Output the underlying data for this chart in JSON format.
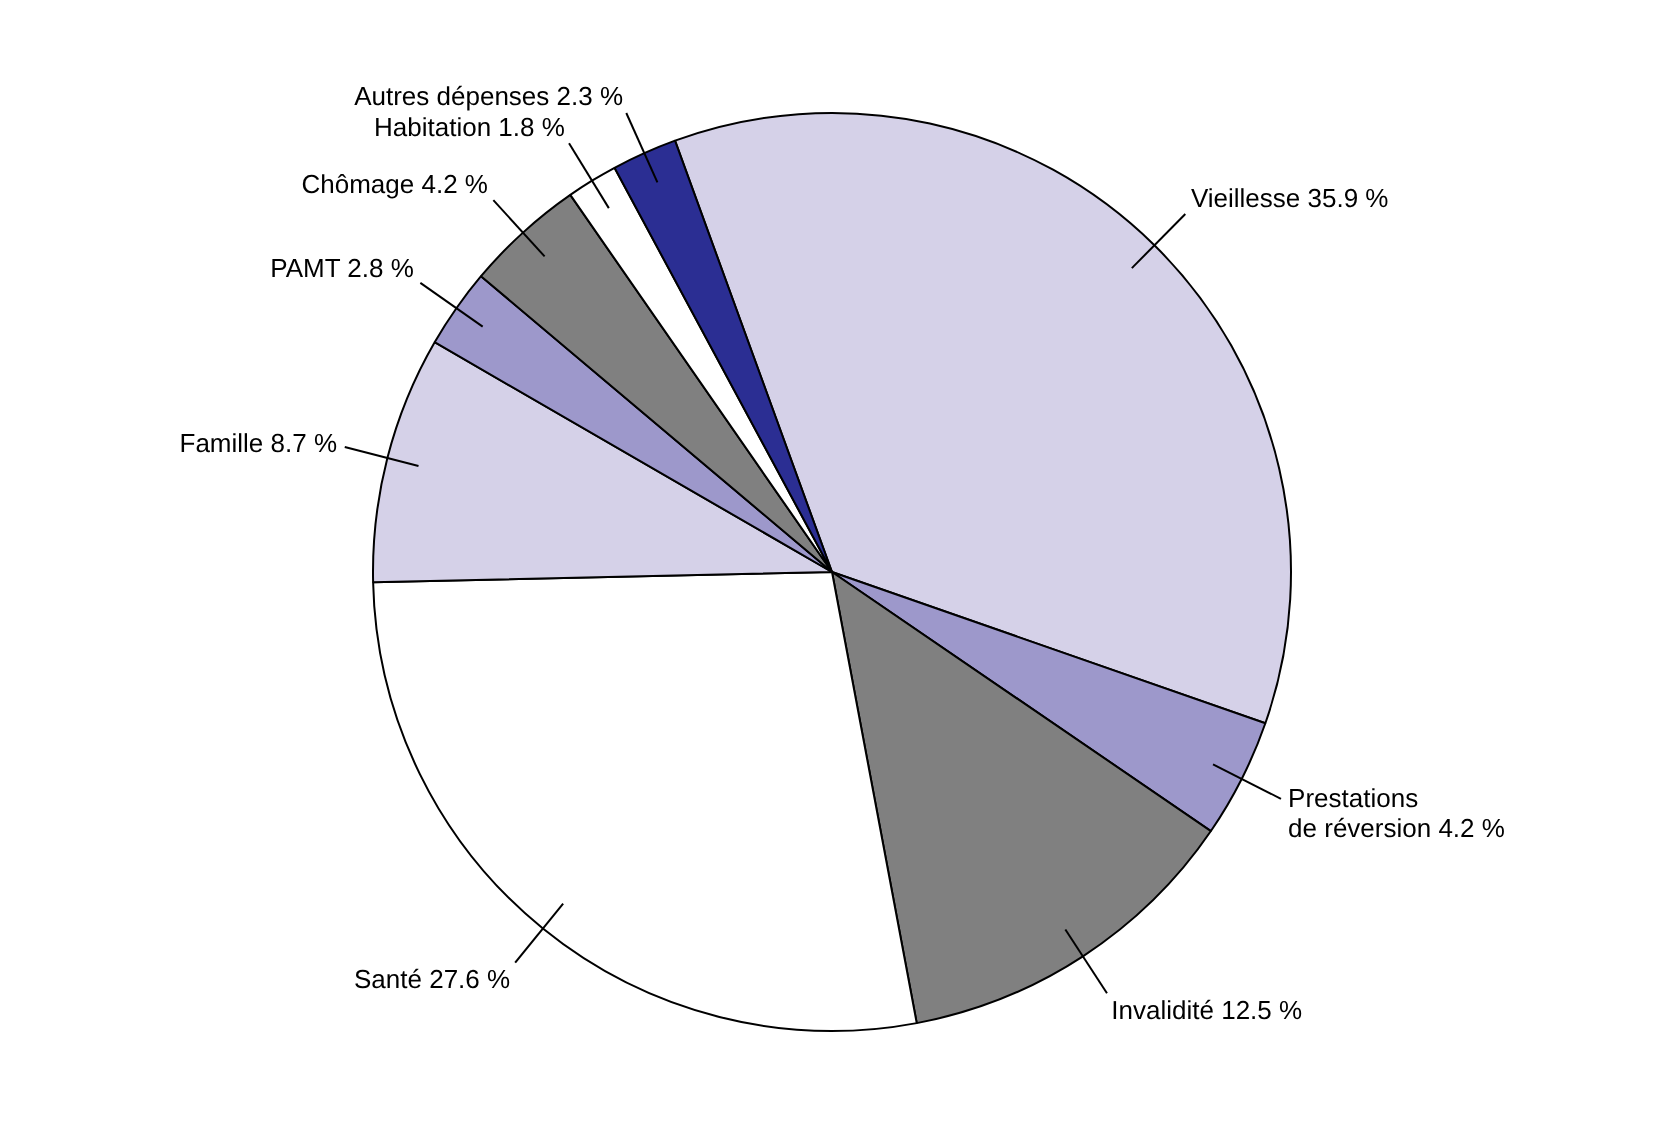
{
  "chart_data": {
    "type": "pie",
    "categories": [
      "Vieillesse",
      "Prestations de réversion",
      "Invalidité",
      "Santé",
      "Famille",
      "PAMT",
      "Chômage",
      "Habitation",
      "Autres dépenses"
    ],
    "values": [
      35.9,
      4.2,
      12.5,
      27.6,
      8.7,
      2.8,
      4.2,
      1.8,
      2.3
    ],
    "value_labels": [
      "35.9 %",
      "4.2 %",
      "12.5 %",
      "27.6 %",
      "8.7 %",
      "2.8 %",
      "4.2 %",
      "1.8 %",
      "2.3 %"
    ],
    "colors": [
      "#d5d1e8",
      "#9d98cb",
      "#808080",
      "#ffffff",
      "#d5d1e8",
      "#9d98cb",
      "#808080",
      "#ffffff",
      "#2b2e93"
    ],
    "legend": false
  }
}
